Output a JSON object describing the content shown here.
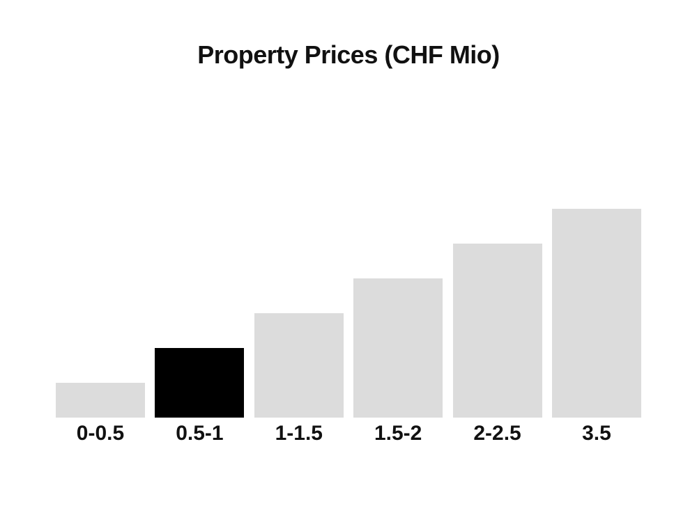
{
  "chart_data": {
    "type": "bar",
    "title": "Property Prices (CHF Mio)",
    "xlabel": "",
    "ylabel": "",
    "categories": [
      "0-0.5",
      "0.5-1",
      "1-1.5",
      "1.5-2",
      "2-2.5",
      "3.5"
    ],
    "values": [
      1,
      2,
      3,
      4,
      5,
      6
    ],
    "ylim": [
      0,
      6
    ],
    "grid": false,
    "axes_visible": false,
    "legend": null,
    "highlighted_index": 1,
    "highlighted_category": "0.5-1",
    "colors": {
      "bar_default": "#dcdcdc",
      "bar_highlight": "#000000",
      "text": "#111111",
      "background": "#ffffff"
    }
  }
}
